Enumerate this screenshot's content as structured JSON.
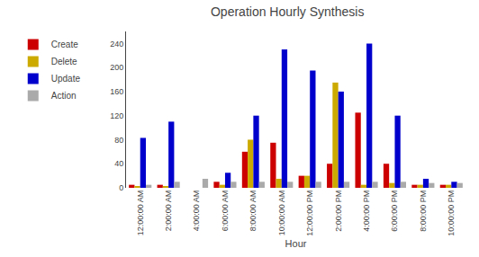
{
  "chart_data": {
    "type": "bar",
    "title": "Operation Hourly Synthesis",
    "x_label": "Hour",
    "categories": [
      "12:00:00 AM",
      "2:00:00 AM",
      "4:00:00 AM",
      "6:00:00 AM",
      "8:00:00 AM",
      "10:00:00 AM",
      "12:00:00 PM",
      "2:00:00 PM",
      "4:00:00 PM",
      "6:00:00 PM",
      "8:00:00 PM",
      "10:00:00 PM"
    ],
    "series": [
      {
        "name": "Create",
        "color": "#cc0000",
        "values": [
          5,
          5,
          0,
          10,
          60,
          75,
          20,
          40,
          125,
          40,
          5,
          5
        ]
      },
      {
        "name": "Delete",
        "color": "#ccaa00",
        "values": [
          2,
          3,
          0,
          5,
          80,
          15,
          20,
          175,
          5,
          8,
          5,
          5
        ]
      },
      {
        "name": "Update",
        "color": "#0000cc",
        "values": [
          83,
          110,
          0,
          25,
          120,
          230,
          195,
          160,
          240,
          120,
          15,
          10
        ]
      },
      {
        "name": "Action",
        "color": "#aaaaaa",
        "values": [
          5,
          10,
          15,
          10,
          10,
          10,
          10,
          10,
          10,
          10,
          8,
          8
        ]
      }
    ],
    "ylim": [
      0,
      260
    ],
    "yticks": [
      0,
      40,
      80,
      120,
      160,
      200,
      240
    ],
    "grid": false,
    "legend": "left"
  }
}
